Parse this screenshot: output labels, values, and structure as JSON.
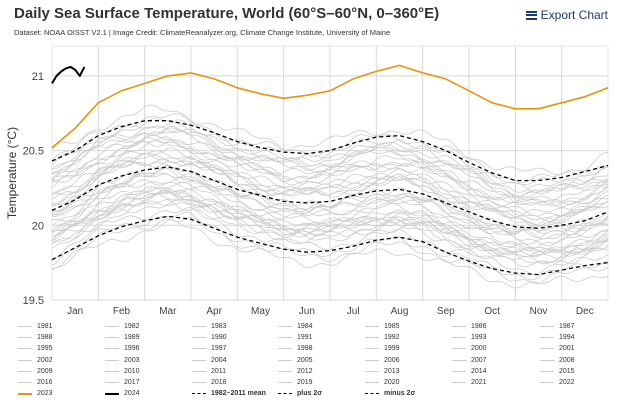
{
  "header": {
    "title": "Daily Sea Surface Temperature, World (60°S–60°N, 0–360°E)",
    "subtitle": "Dataset: NOAA OISST V2.1 | Image Credit: ClimateReanalyzer.org, Climate Change Institute, University of Maine",
    "export_label": "Export Chart"
  },
  "colors": {
    "y2023": "#e8930c",
    "y2024": "#000000",
    "history": "#cccccc",
    "mean": "#000000",
    "grid": "#d8d8d8"
  },
  "chart_data": {
    "type": "line",
    "title": "Daily Sea Surface Temperature, World (60°S–60°N, 0–360°E)",
    "ylabel": "Temperature (°C)",
    "ylim": [
      19.5,
      21.2
    ],
    "yticks": [
      19.5,
      20,
      20.5,
      21
    ],
    "ytick_labels": [
      "19.5",
      "20",
      "20.5",
      "21"
    ],
    "months": [
      "Jan",
      "Feb",
      "Mar",
      "Apr",
      "May",
      "Jun",
      "Jul",
      "Aug",
      "Sep",
      "Oct",
      "Nov",
      "Dec"
    ],
    "x_unit": "month",
    "grid": true,
    "historical_years": {
      "names": [
        "1981",
        "1982",
        "1983",
        "1984",
        "1985",
        "1986",
        "1987",
        "1988",
        "1989",
        "1990",
        "1991",
        "1992",
        "1993",
        "1994",
        "1995",
        "1996",
        "1997",
        "1998",
        "1999",
        "2000",
        "2001",
        "2002",
        "2003",
        "2004",
        "2005",
        "2006",
        "2007",
        "2008",
        "2009",
        "2010",
        "2011",
        "2012",
        "2013",
        "2014",
        "2015",
        "2016",
        "2017",
        "2018",
        "2019",
        "2020",
        "2021",
        "2022"
      ],
      "color": "#cccccc"
    },
    "series": [
      {
        "name": "2023",
        "color": "#e8930c",
        "x": [
          0.0,
          0.5,
          1.0,
          1.5,
          2.0,
          2.5,
          3.0,
          3.5,
          4.0,
          4.5,
          5.0,
          5.5,
          6.0,
          6.5,
          7.0,
          7.5,
          8.0,
          8.5,
          9.0,
          9.5,
          10.0,
          10.5,
          11.0,
          11.5,
          12.0
        ],
        "y": [
          20.52,
          20.65,
          20.82,
          20.9,
          20.95,
          21.0,
          21.02,
          20.98,
          20.92,
          20.88,
          20.85,
          20.87,
          20.9,
          20.98,
          21.03,
          21.07,
          21.02,
          20.98,
          20.9,
          20.82,
          20.78,
          20.78,
          20.82,
          20.86,
          20.92
        ]
      },
      {
        "name": "2024",
        "color": "#000000",
        "x": [
          0.0,
          0.1,
          0.2,
          0.3,
          0.4,
          0.5,
          0.6,
          0.7
        ],
        "y": [
          20.95,
          21.0,
          21.03,
          21.05,
          21.06,
          21.04,
          21.0,
          21.06
        ]
      },
      {
        "name": "1982–2011 mean",
        "color": "#000000",
        "style": "dashed",
        "x": [
          0.0,
          0.5,
          1.0,
          1.5,
          2.0,
          2.5,
          3.0,
          3.5,
          4.0,
          4.5,
          5.0,
          5.5,
          6.0,
          6.5,
          7.0,
          7.5,
          8.0,
          8.5,
          9.0,
          9.5,
          10.0,
          10.5,
          11.0,
          11.5,
          12.0
        ],
        "y": [
          20.1,
          20.17,
          20.27,
          20.33,
          20.37,
          20.39,
          20.36,
          20.3,
          20.24,
          20.2,
          20.16,
          20.15,
          20.16,
          20.2,
          20.23,
          20.24,
          20.21,
          20.15,
          20.09,
          20.03,
          19.99,
          19.98,
          20.0,
          20.03,
          20.09
        ]
      },
      {
        "name": "plus 2σ",
        "color": "#000000",
        "style": "dashed",
        "x": [
          0.0,
          0.5,
          1.0,
          1.5,
          2.0,
          2.5,
          3.0,
          3.5,
          4.0,
          4.5,
          5.0,
          5.5,
          6.0,
          6.5,
          7.0,
          7.5,
          8.0,
          8.5,
          9.0,
          9.5,
          10.0,
          10.5,
          11.0,
          11.5,
          12.0
        ],
        "y": [
          20.43,
          20.5,
          20.6,
          20.66,
          20.7,
          20.7,
          20.67,
          20.62,
          20.56,
          20.52,
          20.49,
          20.48,
          20.5,
          20.55,
          20.59,
          20.6,
          20.56,
          20.5,
          20.42,
          20.35,
          20.3,
          20.3,
          20.32,
          20.36,
          20.4
        ]
      },
      {
        "name": "minus 2σ",
        "color": "#000000",
        "style": "dashed",
        "x": [
          0.0,
          0.5,
          1.0,
          1.5,
          2.0,
          2.5,
          3.0,
          3.5,
          4.0,
          4.5,
          5.0,
          5.5,
          6.0,
          6.5,
          7.0,
          7.5,
          8.0,
          8.5,
          9.0,
          9.5,
          10.0,
          10.5,
          11.0,
          11.5,
          12.0
        ],
        "y": [
          19.77,
          19.85,
          19.93,
          19.99,
          20.03,
          20.06,
          20.04,
          19.98,
          19.92,
          19.88,
          19.84,
          19.82,
          19.83,
          19.86,
          19.9,
          19.92,
          19.89,
          19.82,
          19.76,
          19.71,
          19.68,
          19.67,
          19.7,
          19.73,
          19.75
        ]
      }
    ],
    "legend": [
      [
        "1981",
        "1982",
        "1983",
        "1984",
        "1985",
        "1986",
        "1987"
      ],
      [
        "1988",
        "1989",
        "1990",
        "1991",
        "1992",
        "1993",
        "1994"
      ],
      [
        "1995",
        "1996",
        "1997",
        "1998",
        "1999",
        "2000",
        "2001"
      ],
      [
        "2002",
        "2003",
        "2004",
        "2005",
        "2006",
        "2007",
        "2008"
      ],
      [
        "2009",
        "2010",
        "2011",
        "2012",
        "2013",
        "2014",
        "2015"
      ],
      [
        "2016",
        "2017",
        "2018",
        "2019",
        "2020",
        "2021",
        "2022"
      ],
      [
        "2023",
        "2024",
        "1982–2011 mean",
        "plus 2σ",
        "minus 2σ"
      ]
    ],
    "legend_placement": "bottom"
  }
}
